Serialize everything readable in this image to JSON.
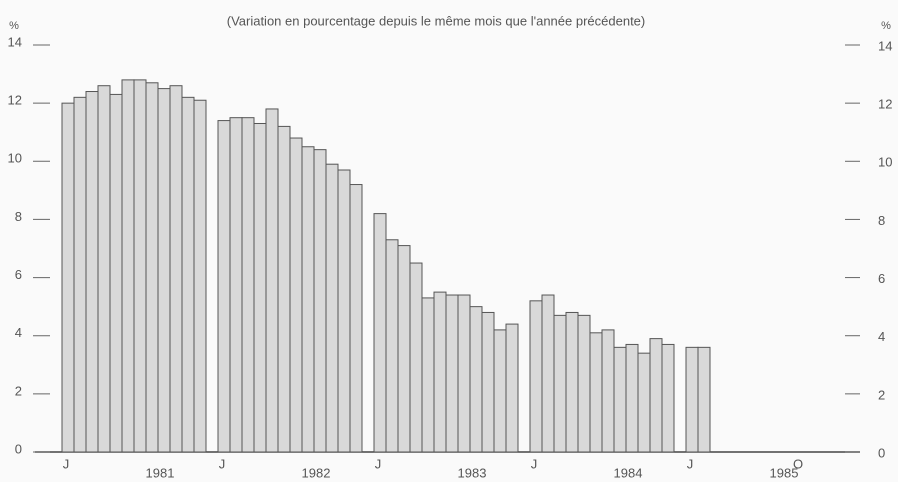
{
  "chart_data": {
    "type": "grouped_months",
    "title": "(Variation en pourcentage depuis le même mois que l'année précédente)",
    "ylabel": "%",
    "y2label": "%",
    "ylim": [
      0,
      14
    ],
    "yticks": [
      0,
      2,
      4,
      6,
      8,
      10,
      12,
      14
    ],
    "y2lim": [
      0,
      14
    ],
    "y2ticks": [
      0,
      2,
      4,
      6,
      8,
      10,
      12,
      14
    ],
    "color": "#d9d9d9",
    "groups": [
      {
        "label": "1981",
        "categories": [
          "J",
          null,
          null,
          null,
          null,
          null,
          null,
          null,
          null,
          null,
          null,
          null
        ],
        "values": [
          12.0,
          12.2,
          12.4,
          12.6,
          12.3,
          12.8,
          12.8,
          12.7,
          12.5,
          12.6,
          12.2,
          12.1
        ]
      },
      {
        "label": "1982",
        "categories": [
          "J",
          null,
          null,
          null,
          null,
          null,
          null,
          null,
          null,
          null,
          null,
          null
        ],
        "values": [
          11.4,
          11.5,
          11.5,
          11.3,
          11.8,
          11.2,
          10.8,
          10.5,
          10.4,
          9.9,
          9.7,
          9.2
        ]
      },
      {
        "label": "1983",
        "categories": [
          "J",
          null,
          null,
          null,
          null,
          null,
          null,
          null,
          null,
          null,
          null,
          null
        ],
        "values": [
          8.2,
          7.3,
          7.1,
          6.5,
          5.3,
          5.5,
          5.4,
          5.4,
          5.0,
          4.8,
          4.2,
          4.4
        ]
      },
      {
        "label": "1984",
        "categories": [
          "J",
          null,
          null,
          null,
          null,
          null,
          null,
          null,
          null,
          null,
          null,
          null
        ],
        "values": [
          5.2,
          5.4,
          4.7,
          4.8,
          4.7,
          4.1,
          4.2,
          3.6,
          3.7,
          3.4,
          3.9,
          3.7
        ]
      },
      {
        "label": "1985",
        "categories": [
          "J",
          null,
          null,
          null,
          null,
          null,
          null,
          null,
          null,
          "O",
          null,
          null
        ],
        "values": [
          3.6,
          3.6,
          null,
          null,
          null,
          null,
          null,
          null,
          null,
          null,
          null,
          null
        ]
      }
    ]
  }
}
